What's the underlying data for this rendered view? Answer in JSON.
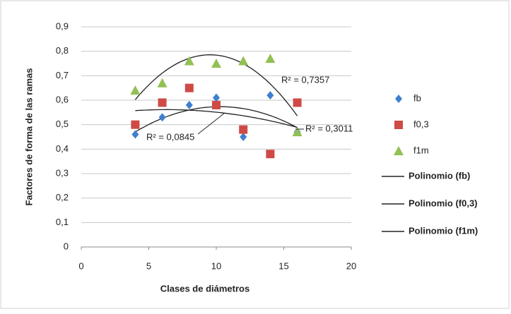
{
  "chart_data": {
    "type": "scatter",
    "xlabel": "Clases de diámetros",
    "ylabel": "Factores de forma de las ramas",
    "x": [
      4,
      6,
      8,
      10,
      12,
      14,
      16
    ],
    "series": [
      {
        "name": "fb",
        "color": "#3f7fd0",
        "marker": "diamond",
        "values": [
          0.46,
          0.53,
          0.58,
          0.61,
          0.45,
          0.62,
          0.47
        ],
        "trendline": {
          "name": "Polinomio (fb)",
          "r2_label": "R² = 0,3011"
        }
      },
      {
        "name": "f0,3",
        "color": "#cf4a45",
        "marker": "square",
        "values": [
          0.5,
          0.59,
          0.65,
          0.58,
          0.48,
          0.38,
          0.59
        ],
        "trendline": {
          "name": "Polinomio (f0,3)",
          "r2_label": "R² = 0,0845"
        }
      },
      {
        "name": "f1m",
        "color": "#92c054",
        "marker": "triangle",
        "values": [
          0.64,
          0.67,
          0.76,
          0.75,
          0.76,
          0.77,
          0.47
        ],
        "trendline": {
          "name": "Polinomio (f1m)",
          "r2_label": "R² = 0,7357"
        }
      }
    ],
    "xlim": [
      0,
      20
    ],
    "xticks": [
      0,
      5,
      10,
      15,
      20
    ],
    "ylim": [
      0,
      0.9
    ],
    "yticks": [
      0,
      {
        "value": 0.1,
        "label": "0,1"
      },
      {
        "value": 0.2,
        "label": "0,2"
      },
      {
        "value": 0.3,
        "label": "0,3"
      },
      {
        "value": 0.4,
        "label": "0,4"
      },
      {
        "value": 0.5,
        "label": "0,5"
      },
      {
        "value": 0.6,
        "label": "0,6"
      },
      {
        "value": 0.7,
        "label": "0,7"
      },
      {
        "value": 0.8,
        "label": "0,8"
      },
      {
        "value": 0.9,
        "label": "0,9"
      }
    ],
    "grid": true,
    "legend": "right"
  }
}
